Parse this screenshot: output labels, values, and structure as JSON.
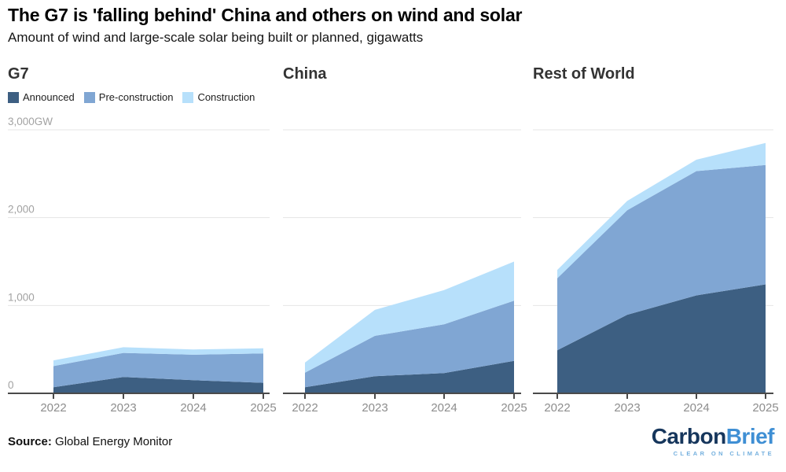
{
  "header": {
    "title": "The G7 is 'falling behind' China and others on wind and solar",
    "subtitle": "Amount of wind and large-scale solar being built or planned, gigawatts"
  },
  "legend": {
    "items": [
      {
        "label": "Announced",
        "color": "#3d5f82"
      },
      {
        "label": "Pre-construction",
        "color": "#80a6d3"
      },
      {
        "label": "Construction",
        "color": "#b7e0fb"
      }
    ]
  },
  "axis": {
    "y_tick_labels": [
      "3,000GW",
      "2,000",
      "1,000",
      "0"
    ],
    "y_tick_values": [
      3000,
      2000,
      1000,
      0
    ],
    "x_tick_labels": [
      "2022",
      "2023",
      "2024",
      "2025"
    ]
  },
  "chart_data": [
    {
      "type": "area",
      "stacked": true,
      "title": "G7",
      "categories": [
        "2022",
        "2023",
        "2024",
        "2025"
      ],
      "ylim": [
        0,
        3000
      ],
      "ylabel": "GW",
      "grid": true,
      "legend_position": "top-left",
      "series": [
        {
          "name": "Announced",
          "color": "#3d5f82",
          "values": [
            70,
            185,
            150,
            120
          ]
        },
        {
          "name": "Pre-construction",
          "color": "#80a6d3",
          "values": [
            240,
            275,
            290,
            335
          ]
        },
        {
          "name": "Construction",
          "color": "#b7e0fb",
          "values": [
            65,
            65,
            60,
            57
          ]
        }
      ]
    },
    {
      "type": "area",
      "stacked": true,
      "title": "China",
      "categories": [
        "2022",
        "2023",
        "2024",
        "2025"
      ],
      "ylim": [
        0,
        3000
      ],
      "ylabel": "GW",
      "grid": true,
      "series": [
        {
          "name": "Announced",
          "color": "#3d5f82",
          "values": [
            70,
            195,
            230,
            370
          ]
        },
        {
          "name": "Pre-construction",
          "color": "#80a6d3",
          "values": [
            165,
            460,
            555,
            685
          ]
        },
        {
          "name": "Construction",
          "color": "#b7e0fb",
          "values": [
            115,
            295,
            390,
            445
          ]
        }
      ]
    },
    {
      "type": "area",
      "stacked": true,
      "title": "Rest of World",
      "categories": [
        "2022",
        "2023",
        "2024",
        "2025"
      ],
      "ylim": [
        0,
        3000
      ],
      "ylabel": "GW",
      "grid": true,
      "series": [
        {
          "name": "Announced",
          "color": "#3d5f82",
          "values": [
            490,
            895,
            1115,
            1240
          ]
        },
        {
          "name": "Pre-construction",
          "color": "#80a6d3",
          "values": [
            820,
            1190,
            1415,
            1360
          ]
        },
        {
          "name": "Construction",
          "color": "#b7e0fb",
          "values": [
            95,
            105,
            130,
            250
          ]
        }
      ]
    }
  ],
  "footer": {
    "source_label": "Source:",
    "source_text": " Global Energy Monitor"
  },
  "logo": {
    "word1": "Carbon",
    "word2": "Brief",
    "tagline": "CLEAR ON CLIMATE"
  },
  "colors": {
    "gridline": "#e4e4e4",
    "axis_line": "#4a4a4a",
    "y_tick_text": "#a2a2a2",
    "x_tick_text": "#8d8d8d"
  }
}
